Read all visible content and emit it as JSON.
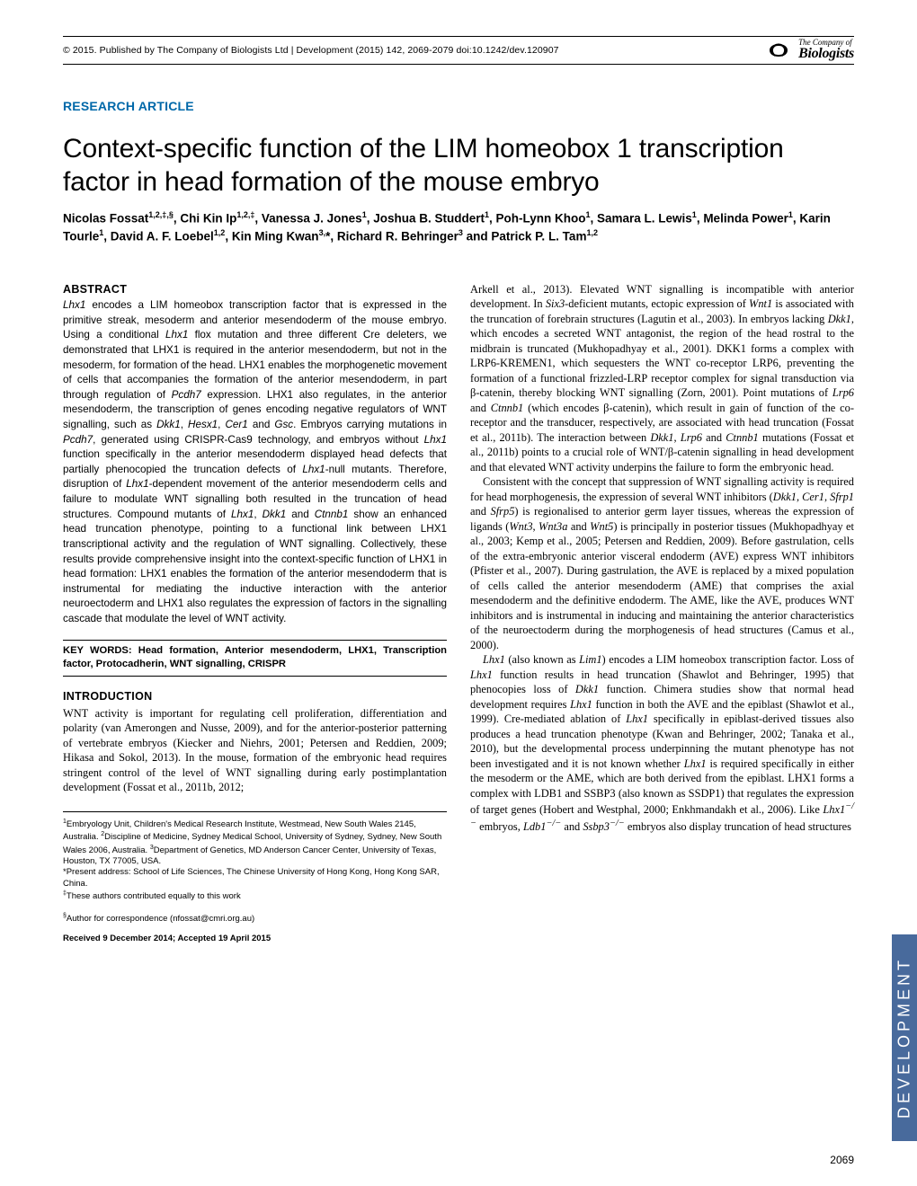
{
  "meta": {
    "copyright": "© 2015. Published by The Company of Biologists Ltd | Development (2015) 142, 2069-2079 doi:10.1242/dev.120907",
    "logo_small": "The Company of",
    "logo_big": "Biologists"
  },
  "header": {
    "article_type": "RESEARCH ARTICLE",
    "title": "Context-specific function of the LIM homeobox 1 transcription factor in head formation of the mouse embryo",
    "authors_html": "Nicolas Fossat<sup>1,2,‡,§</sup>, Chi Kin Ip<sup>1,2,‡</sup>, Vanessa J. Jones<sup>1</sup>, Joshua B. Studdert<sup>1</sup>, Poh-Lynn Khoo<sup>1</sup>, Samara L. Lewis<sup>1</sup>, Melinda Power<sup>1</sup>, Karin Tourle<sup>1</sup>, David A. F. Loebel<sup>1,2</sup>, Kin Ming Kwan<sup>3,</sup>*, Richard R. Behringer<sup>3</sup> and Patrick P. L. Tam<sup>1,2</sup>"
  },
  "abstract": {
    "head": "ABSTRACT",
    "body": "<em>Lhx1</em> encodes a LIM homeobox transcription factor that is expressed in the primitive streak, mesoderm and anterior mesendoderm of the mouse embryo. Using a conditional <em>Lhx1</em> flox mutation and three different Cre deleters, we demonstrated that LHX1 is required in the anterior mesendoderm, but not in the mesoderm, for formation of the head. LHX1 enables the morphogenetic movement of cells that accompanies the formation of the anterior mesendoderm, in part through regulation of <em>Pcdh7</em> expression. LHX1 also regulates, in the anterior mesendoderm, the transcription of genes encoding negative regulators of WNT signalling, such as <em>Dkk1</em>, <em>Hesx1</em>, <em>Cer1</em> and <em>Gsc</em>. Embryos carrying mutations in <em>Pcdh7</em>, generated using CRISPR-Cas9 technology, and embryos without <em>Lhx1</em> function specifically in the anterior mesendoderm displayed head defects that partially phenocopied the truncation defects of <em>Lhx1</em>-null mutants. Therefore, disruption of <em>Lhx1</em>-dependent movement of the anterior mesendoderm cells and failure to modulate WNT signalling both resulted in the truncation of head structures. Compound mutants of <em>Lhx1</em>, <em>Dkk1</em> and <em>Ctnnb1</em> show an enhanced head truncation phenotype, pointing to a functional link between LHX1 transcriptional activity and the regulation of WNT signalling. Collectively, these results provide comprehensive insight into the context-specific function of LHX1 in head formation: LHX1 enables the formation of the anterior mesendoderm that is instrumental for mediating the inductive interaction with the anterior neuroectoderm and LHX1 also regulates the expression of factors in the signalling cascade that modulate the level of WNT activity."
  },
  "keywords": {
    "text": "KEY WORDS: Head formation, Anterior mesendoderm, LHX1, Transcription factor, Protocadherin, WNT signalling, CRISPR"
  },
  "intro": {
    "head": "INTRODUCTION",
    "p1": "WNT activity is important for regulating cell proliferation, differentiation and polarity (van Amerongen and Nusse, 2009), and for the anterior-posterior patterning of vertebrate embryos (Kiecker and Niehrs, 2001; Petersen and Reddien, 2009; Hikasa and Sokol, 2013). In the mouse, formation of the embryonic head requires stringent control of the level of WNT signalling during early postimplantation development (Fossat et al., 2011b, 2012;"
  },
  "col2": {
    "p1": "Arkell et al., 2013). Elevated WNT signalling is incompatible with anterior development. In <em>Six3</em>-deficient mutants, ectopic expression of <em>Wnt1</em> is associated with the truncation of forebrain structures (Lagutin et al., 2003). In embryos lacking <em>Dkk1</em>, which encodes a secreted WNT antagonist, the region of the head rostral to the midbrain is truncated (Mukhopadhyay et al., 2001). DKK1 forms a complex with LRP6-KREMEN1, which sequesters the WNT co-receptor LRP6, preventing the formation of a functional frizzled-LRP receptor complex for signal transduction via β-catenin, thereby blocking WNT signalling (Zorn, 2001). Point mutations of <em>Lrp6</em> and <em>Ctnnb1</em> (which encodes β-catenin), which result in gain of function of the co-receptor and the transducer, respectively, are associated with head truncation (Fossat et al., 2011b). The interaction between <em>Dkk1</em>, <em>Lrp6</em> and <em>Ctnnb1</em> mutations (Fossat et al., 2011b) points to a crucial role of WNT/β-catenin signalling in head development and that elevated WNT activity underpins the failure to form the embryonic head.",
    "p2": "Consistent with the concept that suppression of WNT signalling activity is required for head morphogenesis, the expression of several WNT inhibitors (<em>Dkk1</em>, <em>Cer1</em>, <em>Sfrp1</em> and <em>Sfrp5</em>) is regionalised to anterior germ layer tissues, whereas the expression of ligands (<em>Wnt3</em>, <em>Wnt3a</em> and <em>Wnt5</em>) is principally in posterior tissues (Mukhopadhyay et al., 2003; Kemp et al., 2005; Petersen and Reddien, 2009). Before gastrulation, cells of the extra-embryonic anterior visceral endoderm (AVE) express WNT inhibitors (Pfister et al., 2007). During gastrulation, the AVE is replaced by a mixed population of cells called the anterior mesendoderm (AME) that comprises the axial mesendoderm and the definitive endoderm. The AME, like the AVE, produces WNT inhibitors and is instrumental in inducing and maintaining the anterior characteristics of the neuroectoderm during the morphogenesis of head structures (Camus et al., 2000).",
    "p3": "<em>Lhx1</em> (also known as <em>Lim1</em>) encodes a LIM homeobox transcription factor. Loss of <em>Lhx1</em> function results in head truncation (Shawlot and Behringer, 1995) that phenocopies loss of <em>Dkk1</em> function. Chimera studies show that normal head development requires <em>Lhx1</em> function in both the AVE and the epiblast (Shawlot et al., 1999). Cre-mediated ablation of <em>Lhx1</em> specifically in epiblast-derived tissues also produces a head truncation phenotype (Kwan and Behringer, 2002; Tanaka et al., 2010), but the developmental process underpinning the mutant phenotype has not been investigated and it is not known whether <em>Lhx1</em> is required specifically in either the mesoderm or the AME, which are both derived from the epiblast. LHX1 forms a complex with LDB1 and SSBP3 (also known as SSDP1) that regulates the expression of target genes (Hobert and Westphal, 2000; Enkhmandakh et al., 2006). Like <em>Lhx1<sup>−/−</sup></em> embryos, <em>Ldb1<sup>−/−</sup></em> and <em>Ssbp3<sup>−/−</sup></em> embryos also display truncation of head structures"
  },
  "affiliations": {
    "a1": "<sup>1</sup>Embryology Unit, Children's Medical Research Institute, Westmead, New South Wales 2145, Australia. <sup>2</sup>Discipline of Medicine, Sydney Medical School, University of Sydney, Sydney, New South Wales 2006, Australia. <sup>3</sup>Department of Genetics, MD Anderson Cancer Center, University of Texas, Houston, TX 77005, USA.",
    "present": "*Present address: School of Life Sciences, The Chinese University of Hong Kong, Hong Kong SAR, China.",
    "equal": "<sup>‡</sup>These authors contributed equally to this work",
    "corr": "<sup>§</sup>Author for correspondence (nfossat@cmri.org.au)",
    "received": "Received 9 December 2014; Accepted 19 April 2015"
  },
  "sidebar": "DEVELOPMENT",
  "page_number": "2069",
  "colors": {
    "accent": "#0068a9",
    "sidebar_bg": "#486a9c",
    "text": "#000000",
    "bg": "#ffffff"
  }
}
